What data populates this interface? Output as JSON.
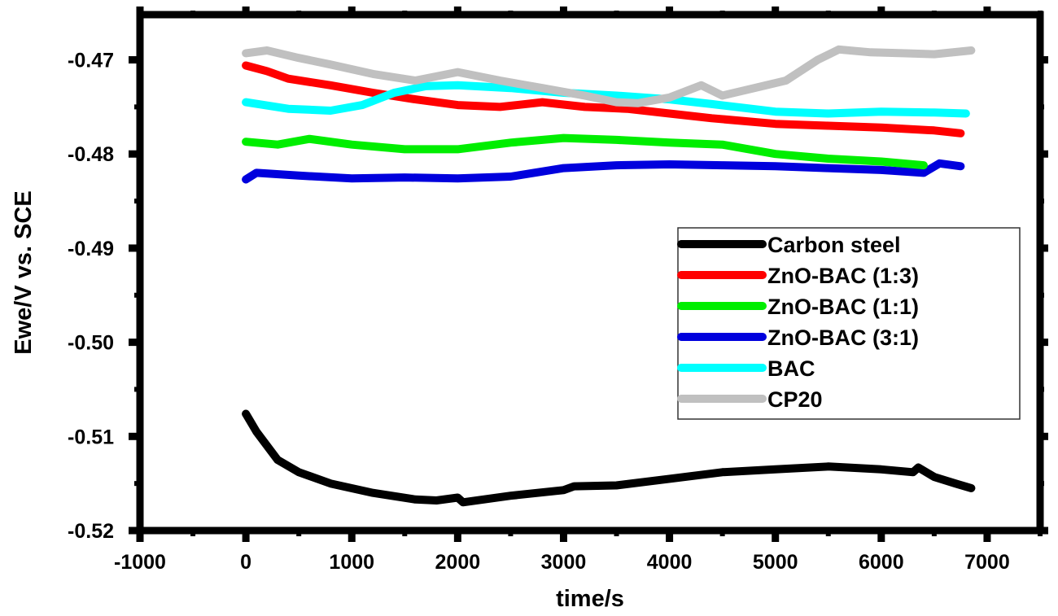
{
  "chart_data": {
    "type": "line",
    "title": "",
    "xlabel": "time/s",
    "ylabel": "Ewe/V vs. SCE",
    "xlim": [
      -1000,
      7500
    ],
    "ylim": [
      -0.52,
      -0.4652
    ],
    "x_ticks": [
      -1000,
      0,
      1000,
      2000,
      3000,
      4000,
      5000,
      6000,
      7000
    ],
    "x_tick_labels": [
      "-1000",
      "0",
      "1000",
      "2000",
      "3000",
      "4000",
      "5000",
      "6000",
      "7000"
    ],
    "y_ticks": [
      -0.47,
      -0.48,
      -0.49,
      -0.5,
      -0.51,
      -0.52
    ],
    "y_tick_labels": [
      "-0.47",
      "-0.48",
      "-0.49",
      "-0.50",
      "-0.51",
      "-0.52"
    ],
    "grid": false,
    "legend_position": "center-right",
    "series": [
      {
        "name": "Carbon steel",
        "color": "#000000",
        "x": [
          0,
          100,
          300,
          500,
          800,
          1200,
          1600,
          1800,
          2000,
          2050,
          2500,
          3000,
          3100,
          3500,
          4000,
          4500,
          5000,
          5500,
          6000,
          6300,
          6350,
          6500,
          6700,
          6850
        ],
        "y": [
          -0.5076,
          -0.5095,
          -0.5125,
          -0.5138,
          -0.515,
          -0.516,
          -0.5167,
          -0.5168,
          -0.5165,
          -0.517,
          -0.5163,
          -0.5157,
          -0.5153,
          -0.5152,
          -0.5145,
          -0.5138,
          -0.5135,
          -0.5132,
          -0.5135,
          -0.5138,
          -0.5133,
          -0.5143,
          -0.515,
          -0.5155
        ]
      },
      {
        "name": "ZnO-BAC (1:3)",
        "color": "#ff0000",
        "x": [
          0,
          200,
          400,
          800,
          1200,
          1600,
          2000,
          2400,
          2800,
          3200,
          3600,
          4000,
          4400,
          5000,
          5500,
          6000,
          6500,
          6750
        ],
        "y": [
          -0.4706,
          -0.4712,
          -0.472,
          -0.4727,
          -0.4735,
          -0.4742,
          -0.4748,
          -0.475,
          -0.4745,
          -0.475,
          -0.4752,
          -0.4757,
          -0.4762,
          -0.4768,
          -0.477,
          -0.4772,
          -0.4775,
          -0.4778
        ]
      },
      {
        "name": "ZnO-BAC (1:1)",
        "color": "#00ee00",
        "x": [
          0,
          300,
          600,
          1000,
          1500,
          2000,
          2500,
          3000,
          3500,
          4000,
          4500,
          5000,
          5500,
          6000,
          6400
        ],
        "y": [
          -0.4787,
          -0.479,
          -0.4784,
          -0.479,
          -0.4795,
          -0.4795,
          -0.4788,
          -0.4783,
          -0.4785,
          -0.4788,
          -0.479,
          -0.48,
          -0.4805,
          -0.4808,
          -0.4812
        ]
      },
      {
        "name": "ZnO-BAC (3:1)",
        "color": "#0000dd",
        "x": [
          0,
          100,
          500,
          1000,
          1500,
          2000,
          2500,
          3000,
          3500,
          4000,
          4500,
          5000,
          5500,
          6000,
          6400,
          6550,
          6750
        ],
        "y": [
          -0.4827,
          -0.482,
          -0.4823,
          -0.4826,
          -0.4825,
          -0.4826,
          -0.4824,
          -0.4815,
          -0.4812,
          -0.4811,
          -0.4812,
          -0.4813,
          -0.4815,
          -0.4817,
          -0.482,
          -0.481,
          -0.4813
        ]
      },
      {
        "name": "BAC",
        "color": "#00ffff",
        "x": [
          0,
          400,
          800,
          1100,
          1400,
          1700,
          2000,
          2500,
          3000,
          3500,
          4000,
          4400,
          5000,
          5500,
          6000,
          6500,
          6800
        ],
        "y": [
          -0.4745,
          -0.4752,
          -0.4754,
          -0.4748,
          -0.4735,
          -0.4728,
          -0.4727,
          -0.473,
          -0.4735,
          -0.4738,
          -0.4742,
          -0.4747,
          -0.4755,
          -0.4757,
          -0.4755,
          -0.4756,
          -0.4757
        ]
      },
      {
        "name": "CP20",
        "color": "#c0c0c0",
        "x": [
          0,
          200,
          500,
          800,
          1200,
          1600,
          2000,
          2400,
          2800,
          3200,
          3500,
          3700,
          4000,
          4300,
          4500,
          4800,
          5100,
          5400,
          5600,
          5900,
          6200,
          6500,
          6850
        ],
        "y": [
          -0.4693,
          -0.469,
          -0.4698,
          -0.4705,
          -0.4715,
          -0.4722,
          -0.4713,
          -0.4722,
          -0.473,
          -0.4738,
          -0.4745,
          -0.4746,
          -0.474,
          -0.4727,
          -0.4738,
          -0.473,
          -0.4722,
          -0.47,
          -0.4689,
          -0.4692,
          -0.4693,
          -0.4694,
          -0.469
        ]
      }
    ]
  },
  "axes": {
    "x_title": "time/s",
    "y_title": "Ewe/V vs. SCE"
  },
  "legend": {
    "items": [
      {
        "label": "Carbon steel",
        "color": "#000000"
      },
      {
        "label": "ZnO-BAC (1:3)",
        "color": "#ff0000"
      },
      {
        "label": "ZnO-BAC (1:1)",
        "color": "#00ee00"
      },
      {
        "label": "ZnO-BAC (3:1)",
        "color": "#0000dd"
      },
      {
        "label": "BAC",
        "color": "#00ffff"
      },
      {
        "label": "CP20",
        "color": "#c0c0c0"
      }
    ]
  }
}
